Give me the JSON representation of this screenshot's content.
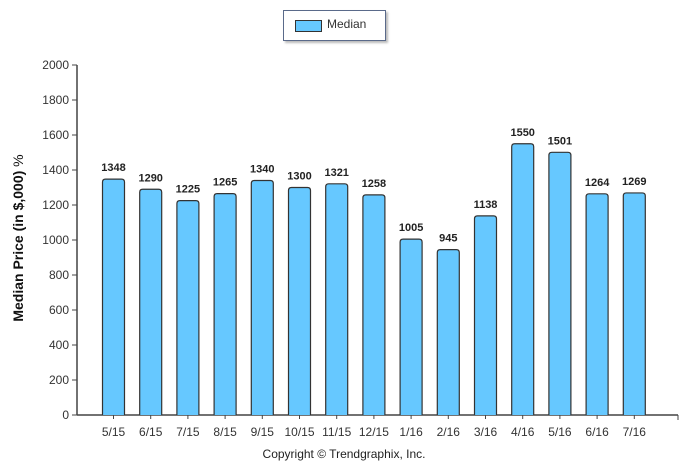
{
  "chart_data": {
    "type": "bar",
    "title": "",
    "categories": [
      "5/15",
      "6/15",
      "7/15",
      "8/15",
      "9/15",
      "10/15",
      "11/15",
      "12/15",
      "1/16",
      "2/16",
      "3/16",
      "4/16",
      "5/16",
      "6/16",
      "7/16"
    ],
    "series": [
      {
        "name": "Median",
        "values": [
          1348,
          1290,
          1225,
          1265,
          1340,
          1300,
          1321,
          1258,
          1005,
          945,
          1138,
          1550,
          1501,
          1264,
          1269
        ],
        "color": "#66c8ff"
      }
    ],
    "xlabel": "",
    "ylabel": "Median Price (in $,000)",
    "ylabel_suffix": "%",
    "ylim": [
      0,
      2000
    ],
    "yticks": [
      0,
      200,
      400,
      600,
      800,
      1000,
      1200,
      1400,
      1600,
      1800,
      2000
    ],
    "grid": false,
    "legend": "top-center"
  },
  "footer": {
    "copyright": "Copyright © Trendgraphix, Inc."
  }
}
